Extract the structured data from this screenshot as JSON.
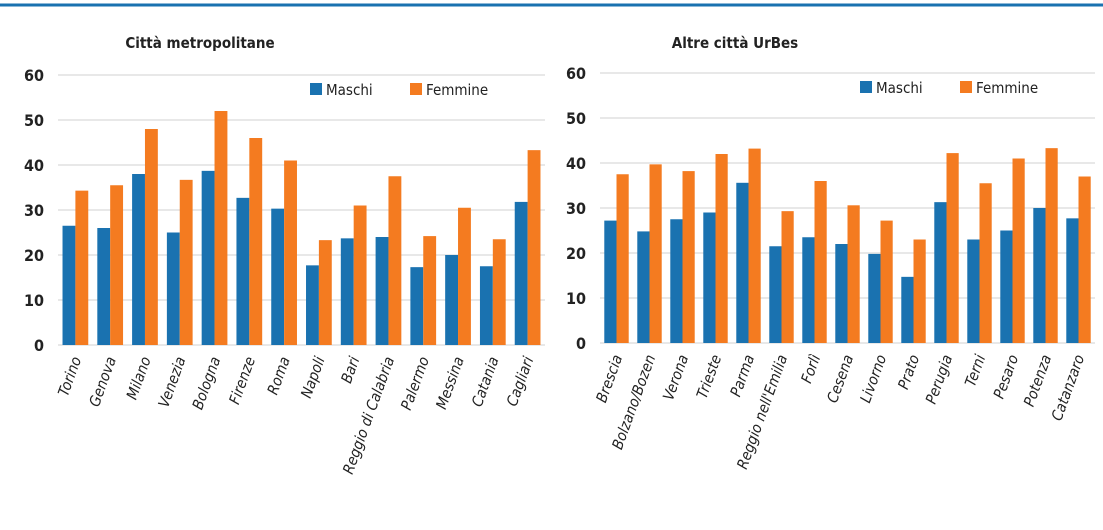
{
  "chart_data": [
    {
      "type": "bar",
      "title": "Città metropolitane",
      "categories": [
        "Torino",
        "Genova",
        "Milano",
        "Venezia",
        "Bologna",
        "Firenze",
        "Roma",
        "Napoli",
        "Bari",
        "Reggio di Calabria",
        "Palermo",
        "Messina",
        "Catania",
        "Cagliari"
      ],
      "series": [
        {
          "name": "Maschi",
          "color": "#1a72b0",
          "values": [
            26.5,
            26,
            38,
            25,
            38.7,
            32.7,
            30.3,
            17.7,
            23.7,
            24,
            17.3,
            20,
            17.5,
            31.8
          ]
        },
        {
          "name": "Femmine",
          "color": "#f47b20",
          "values": [
            34.3,
            35.5,
            48,
            36.7,
            52,
            46,
            41,
            23.3,
            31,
            37.5,
            24.2,
            30.5,
            23.5,
            43.3
          ]
        }
      ],
      "ylim": [
        0,
        60
      ],
      "yticks": [
        0,
        10,
        20,
        30,
        40,
        50,
        60
      ],
      "grid": true,
      "legend": "top-right"
    },
    {
      "type": "bar",
      "title": "Altre città UrBes",
      "categories": [
        "Brescia",
        "Bolzano/Bozen",
        "Verona",
        "Trieste",
        "Parma",
        "Reggio nell'Emilia",
        "Forlì",
        "Cesena",
        "Livorno",
        "Prato",
        "Perugia",
        "Terni",
        "Pesaro",
        "Potenza",
        "Catanzaro"
      ],
      "series": [
        {
          "name": "Maschi",
          "color": "#1a72b0",
          "values": [
            27.2,
            24.8,
            27.5,
            29,
            35.6,
            21.5,
            23.5,
            22,
            19.8,
            14.7,
            31.3,
            23,
            25,
            30,
            27.7
          ]
        },
        {
          "name": "Femmine",
          "color": "#f47b20",
          "values": [
            37.5,
            39.7,
            38.2,
            42,
            43.2,
            29.3,
            36,
            30.6,
            27.2,
            23,
            42.2,
            35.5,
            41,
            43.3,
            37
          ]
        }
      ],
      "ylim": [
        0,
        60
      ],
      "yticks": [
        0,
        10,
        20,
        30,
        40,
        50,
        60
      ],
      "grid": true,
      "legend": "top-right"
    }
  ]
}
